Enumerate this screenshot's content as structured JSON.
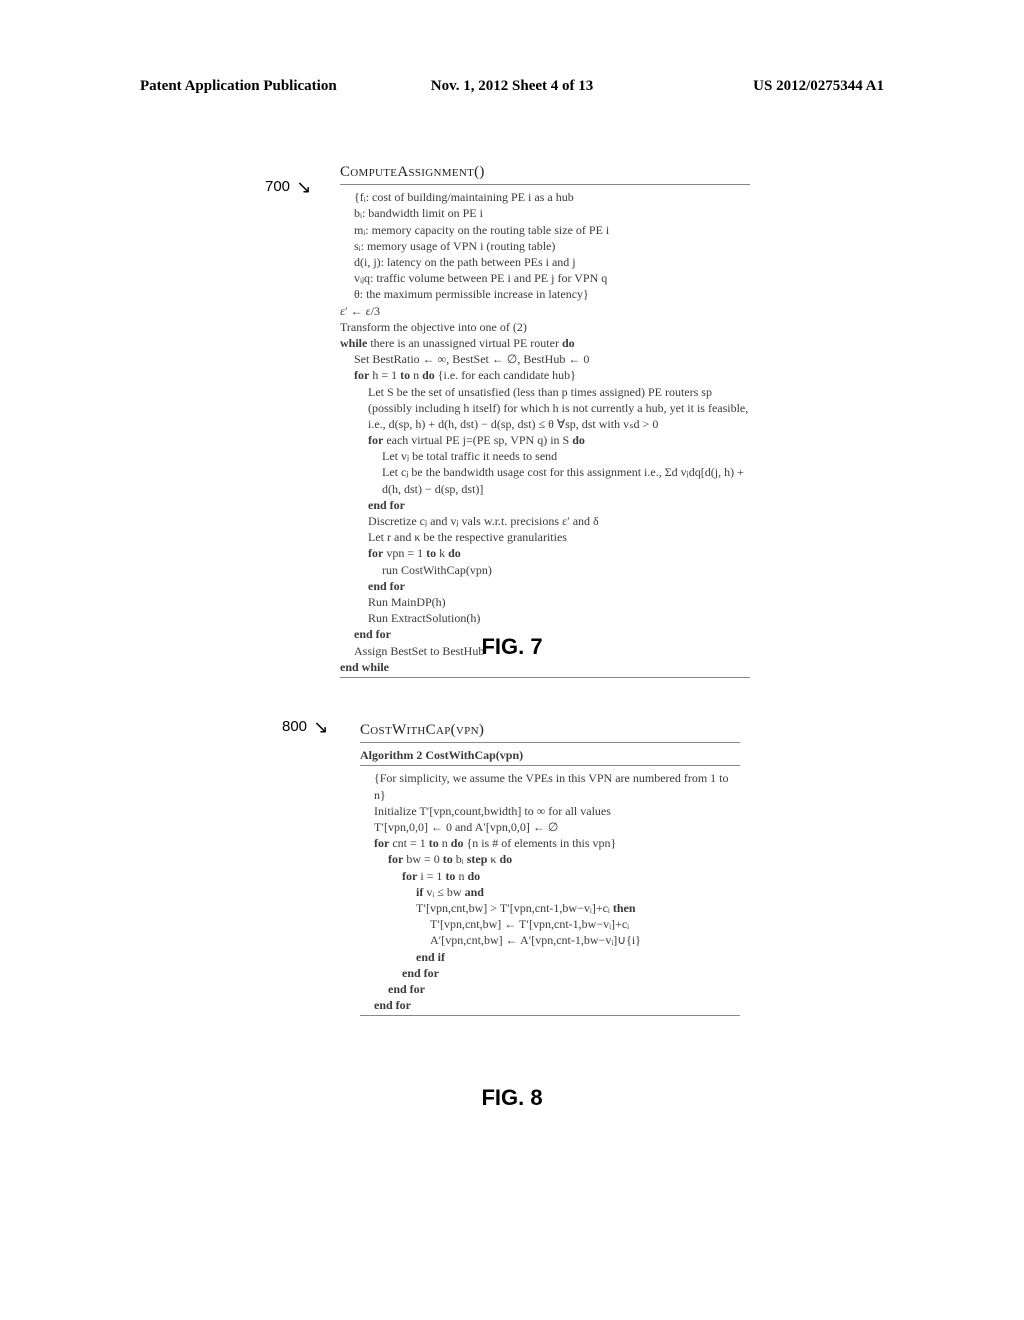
{
  "header": {
    "left": "Patent Application Publication",
    "center": "Nov. 1, 2012   Sheet 4 of 13",
    "right": "US 2012/0275344 A1"
  },
  "fig7": {
    "ref_number": "700",
    "title": "ComputeAssignment()",
    "defs": [
      "{fᵢ: cost of building/maintaining PE i as a hub",
      "bᵢ: bandwidth limit on PE i",
      "mᵢ: memory capacity on the routing table size of PE i",
      "sᵢ: memory usage of VPN i (routing table)",
      "d(i, j): latency on the path between PEs i and j",
      "vᵢⱼq: traffic volume between PE i and PE j for VPN q",
      "θ: the maximum permissible increase in latency}"
    ],
    "body": [
      {
        "text": "ε′ ← ε/3",
        "ind": 0
      },
      {
        "text": "Transform the objective into one of (2)",
        "ind": 0
      },
      {
        "text": "while there is an unassigned virtual PE router do",
        "ind": 0,
        "kw": [
          "while",
          "do"
        ]
      },
      {
        "text": "Set BestRatio ← ∞, BestSet ← ∅, BestHub ← 0",
        "ind": 1
      },
      {
        "text": "for h = 1 to n do {i.e. for each candidate hub}",
        "ind": 1,
        "kw": [
          "for",
          "to",
          "do"
        ]
      },
      {
        "text": "Let S be the set of unsatisfied (less than p times assigned) PE routers sp (possibly including h itself) for which h is not currently a hub, yet it is feasible, i.e., d(sp, h) + d(h, dst) − d(sp, dst) ≤ θ ∀sp, dst with vₛd > 0",
        "ind": 2
      },
      {
        "text": "for each virtual PE j=(PE sp, VPN q) in S do",
        "ind": 2,
        "kw": [
          "for",
          "do"
        ]
      },
      {
        "text": "Let vⱼ be total traffic it needs to send",
        "ind": 3
      },
      {
        "text": "Let cⱼ be the bandwidth usage cost for this assignment i.e., Σd vⱼdq[d(j, h) + d(h, dst) − d(sp, dst)]",
        "ind": 3
      },
      {
        "text": "end for",
        "ind": 2,
        "kw": [
          "end for"
        ]
      },
      {
        "text": "Discretize cⱼ and vⱼ vals w.r.t. precisions ε′ and δ",
        "ind": 2
      },
      {
        "text": "Let r and κ be the respective granularities",
        "ind": 2
      },
      {
        "text": "for vpn = 1 to k do",
        "ind": 2,
        "kw": [
          "for",
          "to",
          "do"
        ]
      },
      {
        "text": "run CostWithCap(vpn)",
        "ind": 3
      },
      {
        "text": "end for",
        "ind": 2,
        "kw": [
          "end for"
        ]
      },
      {
        "text": "Run MainDP(h)",
        "ind": 2
      },
      {
        "text": "Run ExtractSolution(h)",
        "ind": 2
      },
      {
        "text": "end for",
        "ind": 1,
        "kw": [
          "end for"
        ]
      },
      {
        "text": "Assign BestSet to BestHub",
        "ind": 1
      },
      {
        "text": "end while",
        "ind": 0,
        "kw": [
          "end while"
        ]
      }
    ],
    "caption": "FIG. 7"
  },
  "fig8": {
    "ref_number": "800",
    "title": "CostWithCap(vpn)",
    "subtitle": "Algorithm 2 CostWithCap(vpn)",
    "body": [
      {
        "text": "{For simplicity, we assume the VPEs in this VPN are numbered from 1 to n}",
        "ind": 1
      },
      {
        "text": "Initialize T′[vpn,count,bwidth] to ∞ for all values",
        "ind": 1
      },
      {
        "text": "T′[vpn,0,0] ← 0 and A′[vpn,0,0] ← ∅",
        "ind": 1
      },
      {
        "text": "for cnt = 1 to n do {n is # of elements in this vpn}",
        "ind": 1,
        "kw": [
          "for",
          "to",
          "do"
        ]
      },
      {
        "text": "for bw = 0 to bᵢ step κ do",
        "ind": 2,
        "kw": [
          "for",
          "to",
          "step",
          "do"
        ]
      },
      {
        "text": "for i = 1 to n do",
        "ind": 3,
        "kw": [
          "for",
          "to",
          "do"
        ]
      },
      {
        "text": "if vᵢ ≤ bw and",
        "ind": 4,
        "kw": [
          "if",
          "and"
        ]
      },
      {
        "text": "T′[vpn,cnt,bw] > T′[vpn,cnt-1,bw−vᵢ]+cᵢ then",
        "ind": 4,
        "kw": [
          "then"
        ]
      },
      {
        "text": "T′[vpn,cnt,bw] ←  T′[vpn,cnt-1,bw−vᵢ]+cᵢ",
        "ind": 5
      },
      {
        "text": "A′[vpn,cnt,bw] ←  A′[vpn,cnt-1,bw−vᵢ]∪{i}",
        "ind": 5
      },
      {
        "text": "end if",
        "ind": 4,
        "kw": [
          "end if"
        ]
      },
      {
        "text": "end for",
        "ind": 3,
        "kw": [
          "end for"
        ]
      },
      {
        "text": "end for",
        "ind": 2,
        "kw": [
          "end for"
        ]
      },
      {
        "text": "end for",
        "ind": 1,
        "kw": [
          "end for"
        ]
      }
    ],
    "caption": "FIG. 8"
  }
}
